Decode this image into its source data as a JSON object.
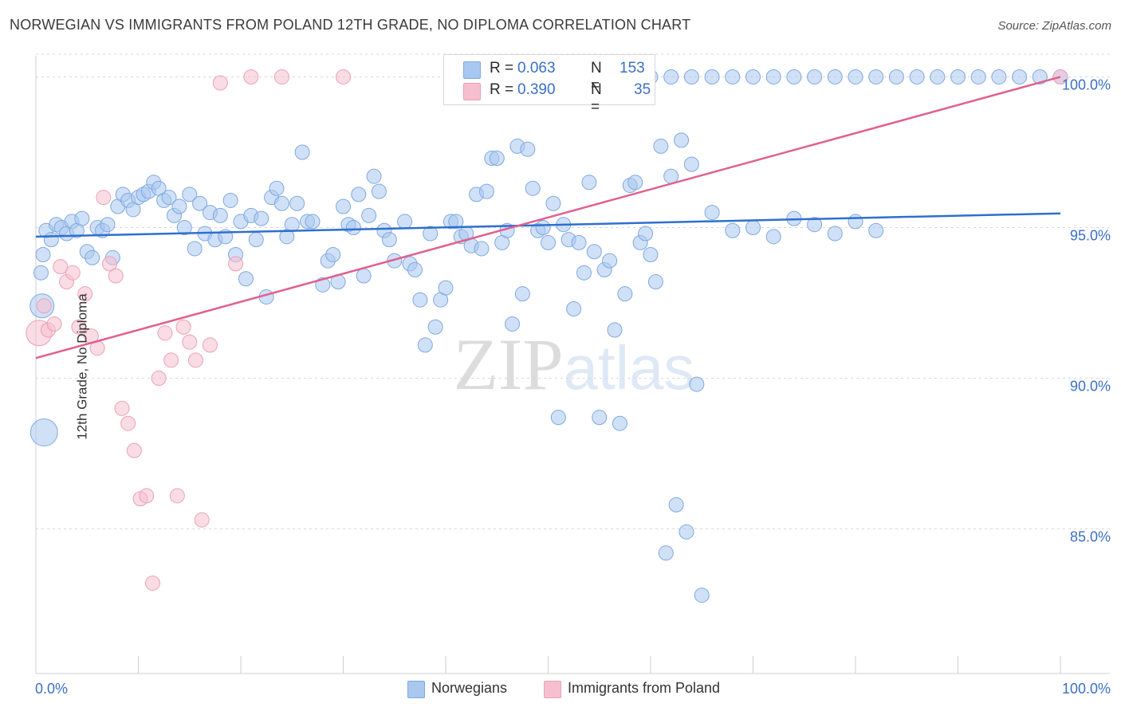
{
  "title": "NORWEGIAN VS IMMIGRANTS FROM POLAND 12TH GRADE, NO DIPLOMA CORRELATION CHART",
  "source": "Source: ZipAtlas.com",
  "watermark": "ZIPatlas",
  "colors": {
    "blue_fill": "#a9c8f0",
    "blue_stroke": "#7fa8e0",
    "blue_line": "#2e6fcf",
    "pink_fill": "#f6bfd0",
    "pink_stroke": "#eba0b8",
    "pink_line": "#e0608e",
    "axis_label": "#3b6fc6",
    "grid": "#d7d7d7"
  },
  "legend": {
    "rows": [
      {
        "r_label": "R =",
        "r_value": "0.063",
        "n_label": "N =",
        "n_value": "153"
      },
      {
        "r_label": "R =",
        "r_value": "0.390",
        "n_label": "N =",
        "n_value": "35"
      }
    ],
    "series": [
      "Norwegians",
      "Immigrants from Poland"
    ]
  },
  "chart_data": {
    "type": "scatter",
    "xlabel": "",
    "ylabel": "12th Grade, No Diploma",
    "xlim": [
      0,
      100
    ],
    "ylim": [
      80.2,
      100.7
    ],
    "x_tick_labels": [
      "0.0%",
      "100.0%"
    ],
    "y_tick_values": [
      85,
      90,
      95,
      100
    ],
    "y_tick_labels": [
      "85.0%",
      "90.0%",
      "95.0%",
      "100.0%"
    ],
    "grid": true,
    "series": [
      {
        "name": "Norwegians",
        "trend": {
          "x": [
            0,
            100
          ],
          "y": [
            94.7,
            95.47
          ]
        },
        "points": [
          [
            0.5,
            93.5
          ],
          [
            0.7,
            94.1
          ],
          [
            1.0,
            94.9
          ],
          [
            1.5,
            94.6
          ],
          [
            2.0,
            95.1
          ],
          [
            2.5,
            95.0
          ],
          [
            3.0,
            94.8
          ],
          [
            3.5,
            95.2
          ],
          [
            4.0,
            94.9
          ],
          [
            4.5,
            95.3
          ],
          [
            5.0,
            94.2
          ],
          [
            5.5,
            94.0
          ],
          [
            6.0,
            95.0
          ],
          [
            6.5,
            94.9
          ],
          [
            7.0,
            95.1
          ],
          [
            7.5,
            94.0
          ],
          [
            8.0,
            95.7
          ],
          [
            8.5,
            96.1
          ],
          [
            9.0,
            95.9
          ],
          [
            9.5,
            95.6
          ],
          [
            10.0,
            96.0
          ],
          [
            10.5,
            96.1
          ],
          [
            11.0,
            96.2
          ],
          [
            11.5,
            96.5
          ],
          [
            12.0,
            96.3
          ],
          [
            12.5,
            95.9
          ],
          [
            13.0,
            96.0
          ],
          [
            13.5,
            95.4
          ],
          [
            14.0,
            95.7
          ],
          [
            14.5,
            95.0
          ],
          [
            15.0,
            96.1
          ],
          [
            15.5,
            94.3
          ],
          [
            16.0,
            95.8
          ],
          [
            16.5,
            94.8
          ],
          [
            17.0,
            95.5
          ],
          [
            17.5,
            94.6
          ],
          [
            18.0,
            95.4
          ],
          [
            18.5,
            94.7
          ],
          [
            19.0,
            95.9
          ],
          [
            19.5,
            94.1
          ],
          [
            20.0,
            95.2
          ],
          [
            20.5,
            93.3
          ],
          [
            21.0,
            95.4
          ],
          [
            21.5,
            94.6
          ],
          [
            22.0,
            95.3
          ],
          [
            22.5,
            92.7
          ],
          [
            23.0,
            96.0
          ],
          [
            23.5,
            96.3
          ],
          [
            24.0,
            95.8
          ],
          [
            24.5,
            94.7
          ],
          [
            25.0,
            95.1
          ],
          [
            25.5,
            95.8
          ],
          [
            26.0,
            97.5
          ],
          [
            26.5,
            95.2
          ],
          [
            27.0,
            95.2
          ],
          [
            28.0,
            93.1
          ],
          [
            28.5,
            93.9
          ],
          [
            29.0,
            94.1
          ],
          [
            29.5,
            93.2
          ],
          [
            30.0,
            95.7
          ],
          [
            30.5,
            95.1
          ],
          [
            31.0,
            95.0
          ],
          [
            31.5,
            96.1
          ],
          [
            32.0,
            93.4
          ],
          [
            32.5,
            95.4
          ],
          [
            33.0,
            96.7
          ],
          [
            33.5,
            96.2
          ],
          [
            34.0,
            94.9
          ],
          [
            34.5,
            94.6
          ],
          [
            35.0,
            93.9
          ],
          [
            36.0,
            95.2
          ],
          [
            36.5,
            93.8
          ],
          [
            37.0,
            93.6
          ],
          [
            37.5,
            92.6
          ],
          [
            38.0,
            91.1
          ],
          [
            38.5,
            94.8
          ],
          [
            39.0,
            91.7
          ],
          [
            39.5,
            92.6
          ],
          [
            40.0,
            93.0
          ],
          [
            40.5,
            95.2
          ],
          [
            41.0,
            95.2
          ],
          [
            41.5,
            94.7
          ],
          [
            42.0,
            94.8
          ],
          [
            42.5,
            94.4
          ],
          [
            43.0,
            96.1
          ],
          [
            43.5,
            94.3
          ],
          [
            44.0,
            96.2
          ],
          [
            44.5,
            97.3
          ],
          [
            45.0,
            97.3
          ],
          [
            45.5,
            94.5
          ],
          [
            46.0,
            94.9
          ],
          [
            46.5,
            91.8
          ],
          [
            47.0,
            97.7
          ],
          [
            47.5,
            92.8
          ],
          [
            48.0,
            97.6
          ],
          [
            48.5,
            96.3
          ],
          [
            49.0,
            94.9
          ],
          [
            49.5,
            95.0
          ],
          [
            50.0,
            94.5
          ],
          [
            50.5,
            95.8
          ],
          [
            51.0,
            88.7
          ],
          [
            51.5,
            95.1
          ],
          [
            52.0,
            94.6
          ],
          [
            52.5,
            92.3
          ],
          [
            53.0,
            94.5
          ],
          [
            53.5,
            93.5
          ],
          [
            54.0,
            96.5
          ],
          [
            54.5,
            94.2
          ],
          [
            55.0,
            88.7
          ],
          [
            55.5,
            93.6
          ],
          [
            56.0,
            93.9
          ],
          [
            56.5,
            91.6
          ],
          [
            57.0,
            88.5
          ],
          [
            57.5,
            92.8
          ],
          [
            58.0,
            96.4
          ],
          [
            58.5,
            96.5
          ],
          [
            59.0,
            94.5
          ],
          [
            59.5,
            94.8
          ],
          [
            60.0,
            94.1
          ],
          [
            60.5,
            93.2
          ],
          [
            61.0,
            97.7
          ],
          [
            61.5,
            84.2
          ],
          [
            62.0,
            96.7
          ],
          [
            62.5,
            85.8
          ],
          [
            63.0,
            97.9
          ],
          [
            63.5,
            84.9
          ],
          [
            64.0,
            97.1
          ],
          [
            64.5,
            89.8
          ],
          [
            65.0,
            82.8
          ],
          [
            60.0,
            100.0
          ],
          [
            62.0,
            100.0
          ],
          [
            64.0,
            100.0
          ],
          [
            66.0,
            100.0
          ],
          [
            68.0,
            100.0
          ],
          [
            70.0,
            100.0
          ],
          [
            72.0,
            100.0
          ],
          [
            74.0,
            100.0
          ],
          [
            76.0,
            100.0
          ],
          [
            78.0,
            100.0
          ],
          [
            80.0,
            100.0
          ],
          [
            82.0,
            100.0
          ],
          [
            84.0,
            100.0
          ],
          [
            86.0,
            100.0
          ],
          [
            88.0,
            100.0
          ],
          [
            90.0,
            100.0
          ],
          [
            92.0,
            100.0
          ],
          [
            94.0,
            100.0
          ],
          [
            96.0,
            100.0
          ],
          [
            98.0,
            100.0
          ],
          [
            100.0,
            100.0
          ],
          [
            0.6,
            92.4
          ],
          [
            0.8,
            88.2
          ],
          [
            66.0,
            95.5
          ],
          [
            68.0,
            94.9
          ],
          [
            70.0,
            95.0
          ],
          [
            72.0,
            94.7
          ],
          [
            74.0,
            95.3
          ],
          [
            76.0,
            95.1
          ],
          [
            78.0,
            94.8
          ],
          [
            80.0,
            95.2
          ],
          [
            82.0,
            94.9
          ]
        ]
      },
      {
        "name": "Immigrants from Poland",
        "trend": {
          "x": [
            0,
            100
          ],
          "y": [
            90.67,
            100.0
          ]
        },
        "points": [
          [
            0.3,
            91.5
          ],
          [
            0.8,
            92.4
          ],
          [
            1.2,
            91.6
          ],
          [
            1.8,
            91.8
          ],
          [
            2.4,
            93.7
          ],
          [
            3.0,
            93.2
          ],
          [
            3.6,
            93.5
          ],
          [
            4.2,
            91.7
          ],
          [
            4.8,
            92.8
          ],
          [
            5.4,
            91.4
          ],
          [
            6.0,
            91.0
          ],
          [
            6.6,
            96.0
          ],
          [
            7.2,
            93.8
          ],
          [
            7.8,
            93.4
          ],
          [
            8.4,
            89.0
          ],
          [
            9.0,
            88.5
          ],
          [
            9.6,
            87.6
          ],
          [
            10.2,
            86.0
          ],
          [
            10.8,
            86.1
          ],
          [
            11.4,
            83.2
          ],
          [
            12.0,
            90.0
          ],
          [
            12.6,
            91.5
          ],
          [
            13.2,
            90.6
          ],
          [
            13.8,
            86.1
          ],
          [
            14.4,
            91.7
          ],
          [
            15.0,
            91.2
          ],
          [
            15.6,
            90.6
          ],
          [
            16.2,
            85.3
          ],
          [
            17.0,
            91.1
          ],
          [
            18.0,
            99.8
          ],
          [
            19.5,
            93.8
          ],
          [
            21.0,
            100.0
          ],
          [
            24.0,
            100.0
          ],
          [
            30.0,
            100.0
          ],
          [
            100.0,
            100.0
          ]
        ]
      }
    ]
  }
}
